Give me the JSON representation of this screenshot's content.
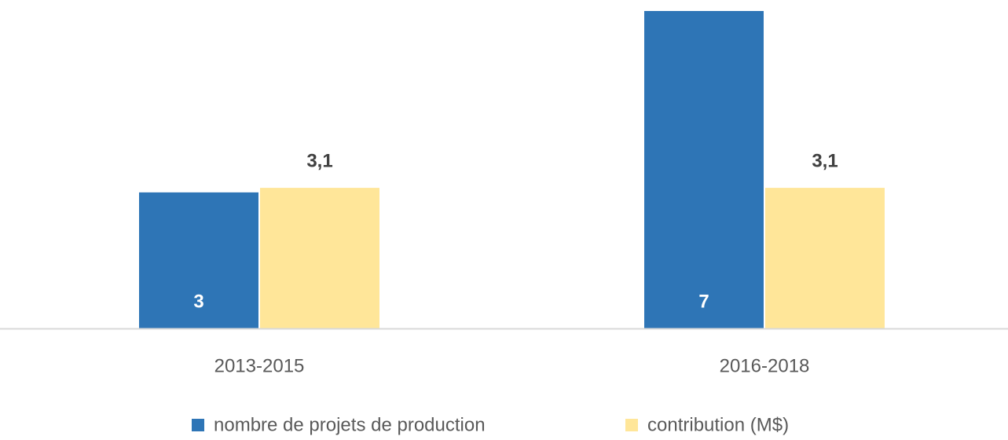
{
  "chart_data": {
    "type": "bar",
    "categories": [
      "2013-2015",
      "2016-2018"
    ],
    "series": [
      {
        "name": "nombre de projets de production",
        "color": "#2e75b6",
        "values": [
          3,
          7
        ]
      },
      {
        "name": "contribution (M$)",
        "color": "#ffe699",
        "values": [
          3.1,
          3.1
        ],
        "value_labels": [
          "3,1",
          "3,1"
        ]
      }
    ],
    "ylim": [
      0,
      7
    ],
    "legend": "bottom"
  }
}
